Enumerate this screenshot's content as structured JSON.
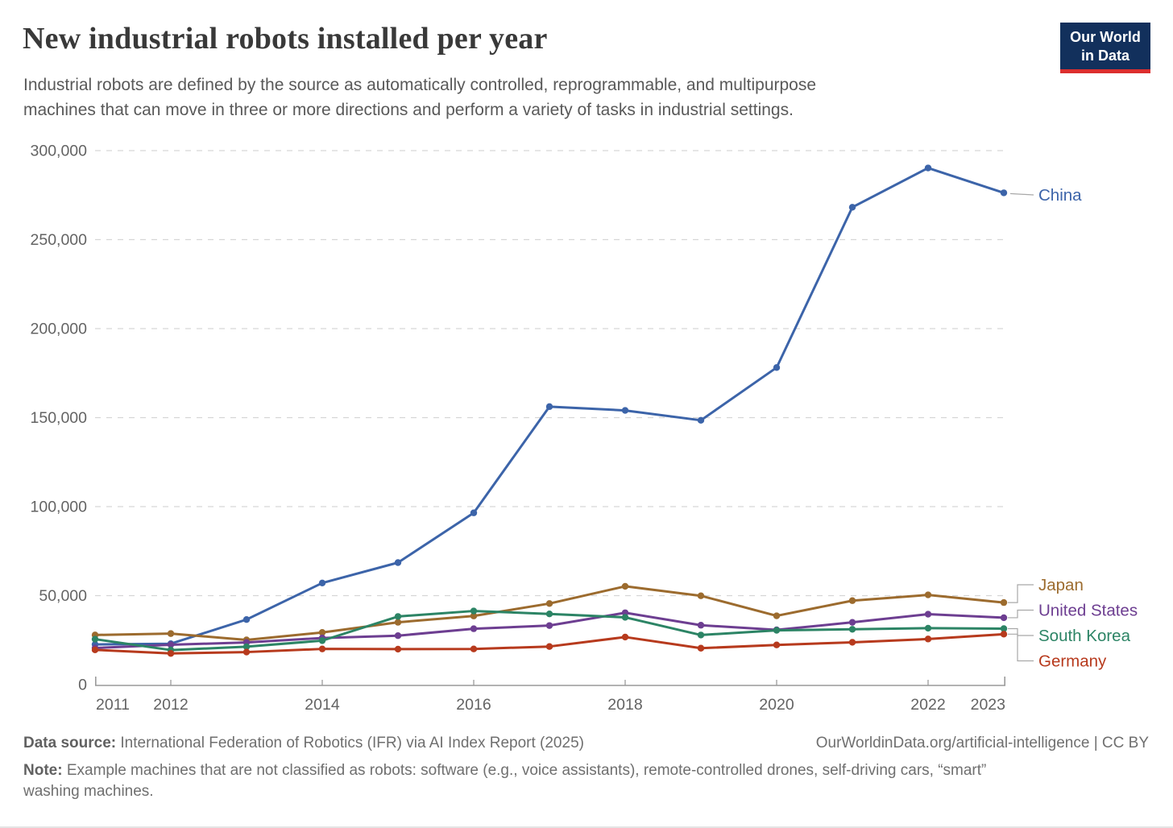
{
  "header": {
    "title": "New industrial robots installed per year",
    "subtitle_lines": [
      "Industrial robots are defined by the source as automatically controlled, reprogrammable, and multipurpose",
      "machines that can move in three or more directions and perform a variety of tasks in industrial settings."
    ],
    "logo": {
      "line1": "Our World",
      "line2": "in Data"
    }
  },
  "chart_data": {
    "type": "line",
    "title": "New industrial robots installed per year",
    "xlabel": "",
    "ylabel": "",
    "x": [
      2011,
      2012,
      2013,
      2014,
      2015,
      2016,
      2017,
      2018,
      2019,
      2020,
      2021,
      2022,
      2023
    ],
    "series": [
      {
        "name": "China",
        "color": "#3c64a9",
        "values": [
          22577,
          22987,
          36560,
          57096,
          68556,
          96500,
          156176,
          154032,
          148505,
          178132,
          268195,
          290258,
          276288
        ]
      },
      {
        "name": "Japan",
        "color": "#9c6b2e",
        "values": [
          27894,
          28680,
          25110,
          29297,
          35023,
          38586,
          45566,
          55240,
          49908,
          38653,
          47182,
          50413,
          46106
        ]
      },
      {
        "name": "United States",
        "color": "#6d3e91",
        "values": [
          20555,
          22414,
          23679,
          26202,
          27504,
          31404,
          33192,
          40373,
          33378,
          30787,
          34987,
          39576,
          37587
        ]
      },
      {
        "name": "South Korea",
        "color": "#2c8465",
        "values": [
          25536,
          19424,
          21307,
          24721,
          38285,
          41373,
          39732,
          37807,
          27873,
          30506,
          31083,
          31716,
          31444
        ]
      },
      {
        "name": "Germany",
        "color": "#b73a1d",
        "values": [
          19533,
          17528,
          18297,
          20051,
          19945,
          20039,
          21404,
          26723,
          20473,
          22302,
          23777,
          25636,
          28355
        ]
      }
    ],
    "ylim": [
      0,
      300000
    ],
    "yticks": [
      0,
      50000,
      100000,
      150000,
      200000,
      250000,
      300000
    ],
    "xticks": [
      2011,
      2012,
      2014,
      2016,
      2018,
      2020,
      2022,
      2023
    ],
    "grid": "horizontal-dashed",
    "legend_position": "right-edge-labels"
  },
  "footer": {
    "source_label": "Data source:",
    "source_text": "International Federation of Robotics (IFR) via AI Index Report (2025)",
    "credit": "OurWorldinData.org/artificial-intelligence | CC BY",
    "note_label": "Note:",
    "note_lines": [
      "Example machines that are not classified as robots: software (e.g., voice assistants), remote-controlled drones, self-driving cars, “smart”",
      "washing machines."
    ]
  }
}
